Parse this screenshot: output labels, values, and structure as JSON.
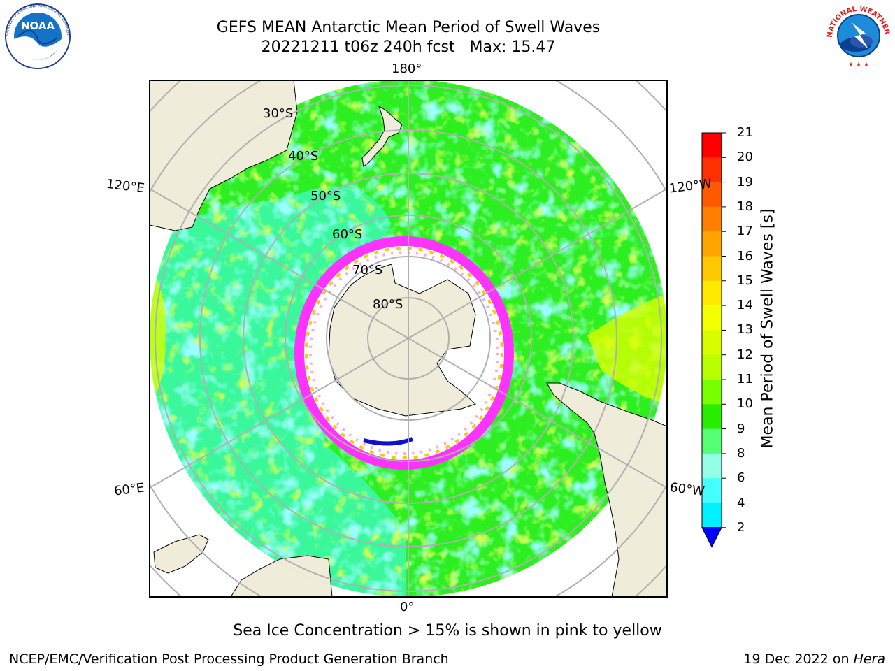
{
  "header": {
    "title_line1": "GEFS MEAN Antarctic Mean Period of Swell Waves",
    "title_line2": "20221211 t06z 240h fcst   Max: 15.47"
  },
  "logos": {
    "left": {
      "name": "noaa-logo",
      "text": "NOAA",
      "ring_text": "NATIONAL OCEANIC AND ATMOSPHERIC ADMINISTRATION · U.S. DEPARTMENT OF COMMERCE"
    },
    "right": {
      "name": "nws-logo",
      "ring_text": "NATIONAL WEATHER SERVICE"
    }
  },
  "map": {
    "projection": "south-polar-stereographic",
    "longitude_labels": [
      "180°",
      "120°E",
      "120°W",
      "60°E",
      "60°W",
      "0°"
    ],
    "latitude_labels": [
      "30°S",
      "40°S",
      "50°S",
      "60°S",
      "70°S",
      "80°S"
    ],
    "land_color": "#efecd9",
    "ice_edge_color": "#ff33ff"
  },
  "colorbar": {
    "label": "Mean Period of Swell Waves [s]",
    "ticks": [
      "21",
      "20",
      "19",
      "18",
      "17",
      "16",
      "15",
      "14",
      "13",
      "12",
      "11",
      "10",
      "9",
      "8",
      "6",
      "4",
      "2"
    ],
    "colors": [
      "#ff0000",
      "#ff3000",
      "#ff5a00",
      "#ff8000",
      "#ffa500",
      "#ffc800",
      "#ffea00",
      "#f4ff00",
      "#d8ff00",
      "#b8ff00",
      "#78ff00",
      "#2aee00",
      "#55ff73",
      "#95ffe6",
      "#45ffff",
      "#00f0ff",
      "#0078ff",
      "#0000ff"
    ]
  },
  "footer": {
    "sea_ice_note": "Sea Ice Concentration > 15% is shown in pink to yellow",
    "credit": "NCEP/EMC/Verification Post Processing Product Generation Branch",
    "date": "19 Dec 2022 on",
    "machine": "Hera"
  }
}
